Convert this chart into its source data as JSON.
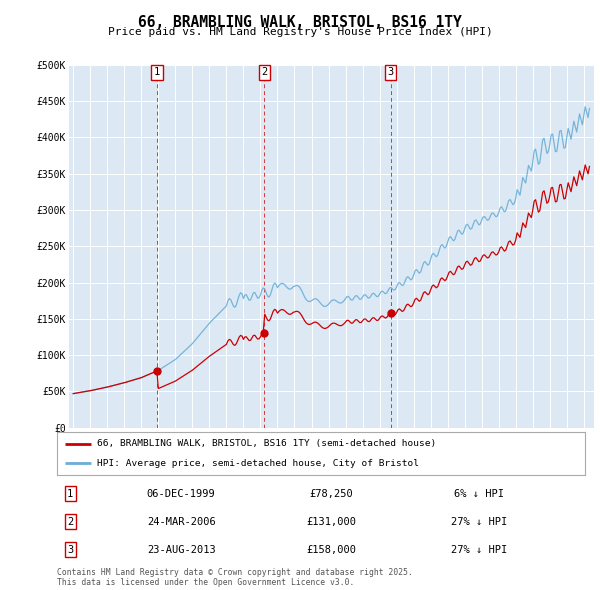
{
  "title": "66, BRAMBLING WALK, BRISTOL, BS16 1TY",
  "subtitle": "Price paid vs. HM Land Registry's House Price Index (HPI)",
  "background_color": "#dce9f5",
  "plot_bg_color": "#dce9f5",
  "ylim": [
    0,
    500000
  ],
  "yticks": [
    0,
    50000,
    100000,
    150000,
    200000,
    250000,
    300000,
    350000,
    400000,
    450000,
    500000
  ],
  "ytick_labels": [
    "£0",
    "£50K",
    "£100K",
    "£150K",
    "£200K",
    "£250K",
    "£300K",
    "£350K",
    "£400K",
    "£450K",
    "£500K"
  ],
  "sale_dates": [
    1999.917,
    2006.23,
    2013.646
  ],
  "sale_prices": [
    78250,
    131000,
    158000
  ],
  "sale_labels": [
    "1",
    "2",
    "3"
  ],
  "sale_info": [
    {
      "num": "1",
      "date": "06-DEC-1999",
      "price": "£78,250",
      "pct": "6% ↓ HPI"
    },
    {
      "num": "2",
      "date": "24-MAR-2006",
      "price": "£131,000",
      "pct": "27% ↓ HPI"
    },
    {
      "num": "3",
      "date": "23-AUG-2013",
      "price": "£158,000",
      "pct": "27% ↓ HPI"
    }
  ],
  "legend_line1": "66, BRAMBLING WALK, BRISTOL, BS16 1TY (semi-detached house)",
  "legend_line2": "HPI: Average price, semi-detached house, City of Bristol",
  "footer": "Contains HM Land Registry data © Crown copyright and database right 2025.\nThis data is licensed under the Open Government Licence v3.0.",
  "hpi_color": "#6baed6",
  "price_color": "#cc0000",
  "dashed_color": "#cc0000",
  "xmin": 1995.0,
  "xmax": 2025.5
}
